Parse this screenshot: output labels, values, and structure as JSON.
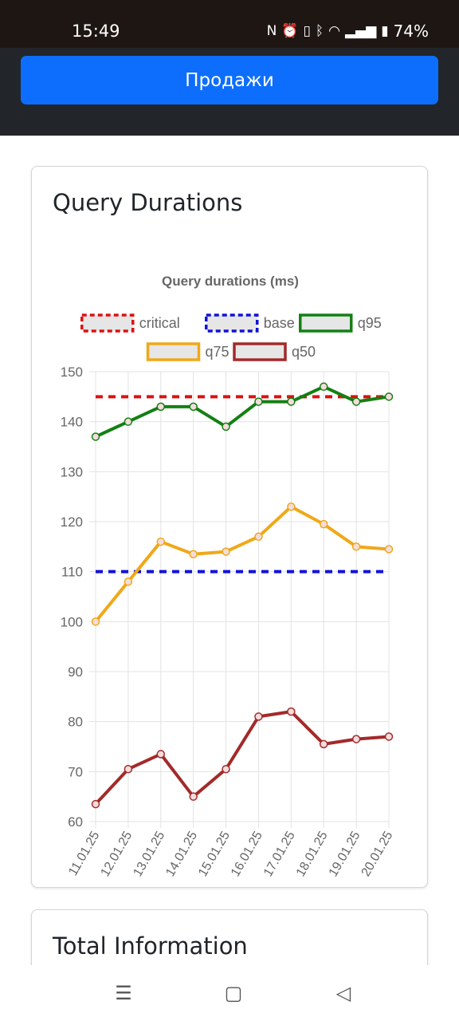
{
  "status": {
    "time": "15:49",
    "battery": "74%"
  },
  "header": {
    "sales_label": "Продажи"
  },
  "card": {
    "title": "Query Durations"
  },
  "total": {
    "title": "Total Information"
  },
  "chart_data": {
    "type": "line",
    "title": "Query durations (ms)",
    "categories": [
      "11.01.25",
      "12.01.25",
      "13.01.25",
      "14.01.25",
      "15.01.25",
      "16.01.25",
      "17.01.25",
      "18.01.25",
      "19.01.25",
      "20.01.25"
    ],
    "ylim": [
      60,
      150
    ],
    "yticks": [
      60,
      70,
      80,
      90,
      100,
      110,
      120,
      130,
      140,
      150
    ],
    "grid": true,
    "legend_position": "top",
    "series": [
      {
        "name": "critical",
        "color": "#dd1111",
        "dashed": true,
        "markers": false,
        "values": [
          145,
          145,
          145,
          145,
          145,
          145,
          145,
          145,
          145,
          145
        ]
      },
      {
        "name": "base",
        "color": "#1111dd",
        "dashed": true,
        "markers": false,
        "values": [
          110,
          110,
          110,
          110,
          110,
          110,
          110,
          110,
          110,
          110
        ]
      },
      {
        "name": "q95",
        "color": "#138013",
        "dashed": false,
        "markers": true,
        "values": [
          137,
          140,
          143,
          143,
          139,
          144,
          144,
          147,
          144,
          145
        ]
      },
      {
        "name": "q75",
        "color": "#f0a818",
        "dashed": false,
        "markers": true,
        "values": [
          100,
          108,
          116,
          113.5,
          114,
          117,
          123,
          119.5,
          115,
          114.5
        ]
      },
      {
        "name": "q50",
        "color": "#a32a2a",
        "dashed": false,
        "markers": true,
        "values": [
          63.5,
          70.5,
          73.5,
          65,
          70.5,
          81,
          82,
          75.5,
          76.5,
          77
        ]
      }
    ]
  }
}
